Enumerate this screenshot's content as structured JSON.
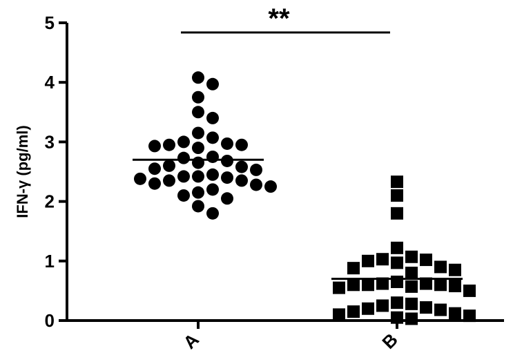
{
  "chart_data": {
    "type": "scatter",
    "xlabel": "",
    "ylabel": "IFN-γ (pg/ml)",
    "ylim": [
      0,
      5
    ],
    "yticks": [
      "0",
      "1",
      "2",
      "3",
      "4",
      "5"
    ],
    "categories": [
      "A",
      "B"
    ],
    "significance": "**",
    "series": [
      {
        "category": "A",
        "marker": "circle",
        "mean": 2.7,
        "values": [
          4.08,
          3.97,
          3.75,
          3.5,
          3.4,
          3.15,
          3.07,
          3.0,
          2.97,
          2.95,
          2.95,
          2.93,
          2.9,
          2.75,
          2.73,
          2.68,
          2.65,
          2.6,
          2.58,
          2.55,
          2.53,
          2.45,
          2.42,
          2.42,
          2.4,
          2.38,
          2.35,
          2.35,
          2.3,
          2.28,
          2.25,
          2.2,
          2.15,
          2.1,
          2.05,
          1.92,
          1.8
        ]
      },
      {
        "category": "B",
        "marker": "square",
        "mean": 0.7,
        "values": [
          2.33,
          2.1,
          1.8,
          1.22,
          1.07,
          1.03,
          1.02,
          1.0,
          0.97,
          0.9,
          0.88,
          0.85,
          0.8,
          0.65,
          0.62,
          0.62,
          0.6,
          0.6,
          0.6,
          0.58,
          0.57,
          0.55,
          0.5,
          0.3,
          0.28,
          0.25,
          0.22,
          0.2,
          0.18,
          0.15,
          0.12,
          0.1,
          0.08,
          0.05,
          0.03
        ]
      }
    ]
  }
}
